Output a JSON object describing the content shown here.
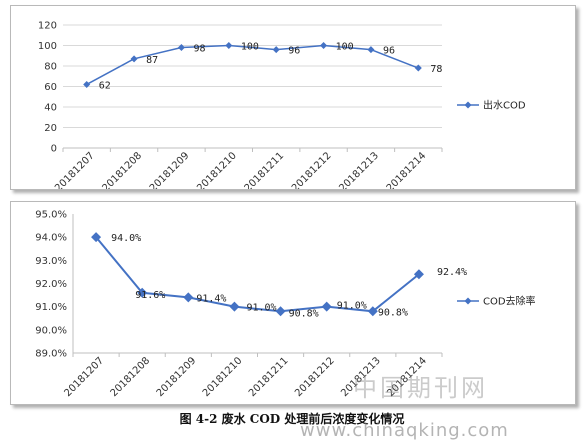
{
  "chart_data": [
    {
      "type": "line",
      "categories": [
        "20181207",
        "20181208",
        "20181209",
        "20181210",
        "20181211",
        "20181212",
        "20181213",
        "20181214"
      ],
      "series": [
        {
          "name": "出水COD",
          "values": [
            62,
            87,
            98,
            100,
            96,
            100,
            96,
            78
          ]
        }
      ],
      "data_labels": [
        "62",
        "87",
        "98",
        "100",
        "96",
        "100",
        "96",
        "78"
      ],
      "y_ticks": [
        "0",
        "20",
        "40",
        "60",
        "80",
        "100",
        "120"
      ],
      "ylim": [
        0,
        120
      ],
      "grid": true,
      "legend": "right",
      "color": "#4472C4"
    },
    {
      "type": "line",
      "categories": [
        "20181207",
        "20181208",
        "20181209",
        "20181210",
        "20181211",
        "20181212",
        "20181213",
        "20181214"
      ],
      "series": [
        {
          "name": "COD去除率",
          "values": [
            94.0,
            91.6,
            91.4,
            91.0,
            90.8,
            91.0,
            90.8,
            92.4
          ]
        }
      ],
      "data_labels": [
        "94.0%",
        "91.6%",
        "91.4%",
        "91.0%",
        "90.8%",
        "91.0%",
        "90.8%",
        "92.4%"
      ],
      "y_ticks": [
        "89.0%",
        "90.0%",
        "91.0%",
        "92.0%",
        "93.0%",
        "94.0%",
        "95.0%"
      ],
      "ylim": [
        89.0,
        95.0
      ],
      "grid": false,
      "legend": "right",
      "color": "#4472C4"
    }
  ],
  "caption": "图 4-2 废水 COD 处理前后浓度变化情况",
  "watermark_cn": "中国期刊网",
  "watermark_url": "www.chinaqking.com"
}
